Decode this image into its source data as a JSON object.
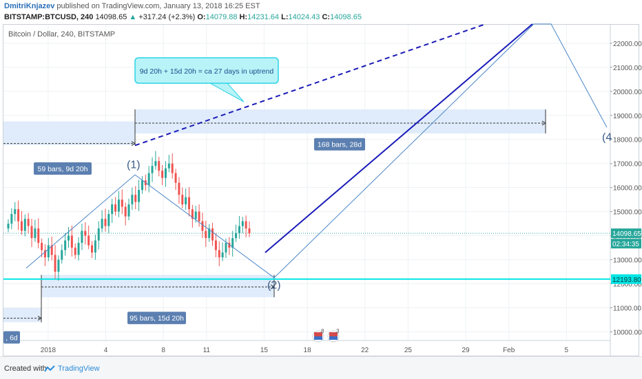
{
  "header": {
    "author": "DmitriKnjazev",
    "published_text": "published on TradingView.com, January 13, 2018 16:25 EST",
    "symbol": "BITSTAMP:BTCUSD, 240",
    "last": "14098.65",
    "change": "+317.24 (+2.3%)",
    "o_label": "O:",
    "o_value": "14079.88",
    "h_label": "H:",
    "h_value": "14231.64",
    "l_label": "L:",
    "l_value": "14024.43",
    "c_label": "C:",
    "c_value": "14098.65"
  },
  "chart_title": "Bitcoin / Dollar, 240, BITSTAMP",
  "footer": {
    "created_with": "Created with",
    "brand": "TradingView"
  },
  "colors": {
    "up": "#26a69a",
    "down": "#ef5350",
    "accent": "#2a6fb8",
    "trend": "#1a1ab8",
    "support": "#00e5e5"
  },
  "chart_data": {
    "type": "candlestick",
    "ylim": [
      9700,
      22300
    ],
    "y_ticks": [
      "22000.00",
      "21000.00",
      "20000.00",
      "19000.00",
      "18000.00",
      "17000.00",
      "16000.00",
      "15000.00",
      "14000.00",
      "13000.00",
      "12000.00",
      "11000.00",
      "10000.00"
    ],
    "x_ticks": [
      {
        "label": "2018",
        "x_day": -4
      },
      {
        "label": "4",
        "x_day": 0
      },
      {
        "label": "8",
        "x_day": 4
      },
      {
        "label": "11",
        "x_day": 7
      },
      {
        "label": "15",
        "x_day": 11
      },
      {
        "label": "18",
        "x_day": 14
      },
      {
        "label": "22",
        "x_day": 18
      },
      {
        "label": "25",
        "x_day": 21
      },
      {
        "label": "29",
        "x_day": 25
      },
      {
        "label": "Feb",
        "x_day": 28
      },
      {
        "label": "5",
        "x_day": 32
      }
    ],
    "price_labels": {
      "last": "14098.65",
      "countdown": "02:34:35",
      "support": "12193.80",
      "last_value": 14098.65,
      "support_value": 12193.8
    },
    "annotations": {
      "callout": "9d 20h + 15d 20h = ca 27 days in uptrend",
      "range_left": "59 bars, 9d 20h",
      "range_bottom": "95 bars, 15d 20h",
      "range_right": "168 bars, 28d",
      "range_partial": ", 6d",
      "wave1": "(1)",
      "wave2": "(2)",
      "wave4": "(4"
    },
    "candle_closes": [
      14500,
      14900,
      15100,
      14600,
      14200,
      14700,
      14400,
      13900,
      14300,
      13700,
      13400,
      13100,
      13600,
      13200,
      12500,
      13000,
      13400,
      13800,
      14000,
      13500,
      13200,
      13700,
      14200,
      14000,
      13600,
      13300,
      13800,
      14300,
      14700,
      14400,
      14900,
      15300,
      15000,
      15500,
      15200,
      14800,
      15300,
      15700,
      15400,
      15900,
      16300,
      16100,
      16600,
      16900,
      17100,
      16700,
      16400,
      16800,
      17000,
      16600,
      16200,
      15700,
      15300,
      15600,
      15100,
      14700,
      15000,
      14600,
      14200,
      13900,
      14300,
      13800,
      13400,
      13100,
      13300,
      13700,
      13500,
      13900,
      14100,
      14400,
      14600,
      14300,
      14098.65
    ]
  }
}
